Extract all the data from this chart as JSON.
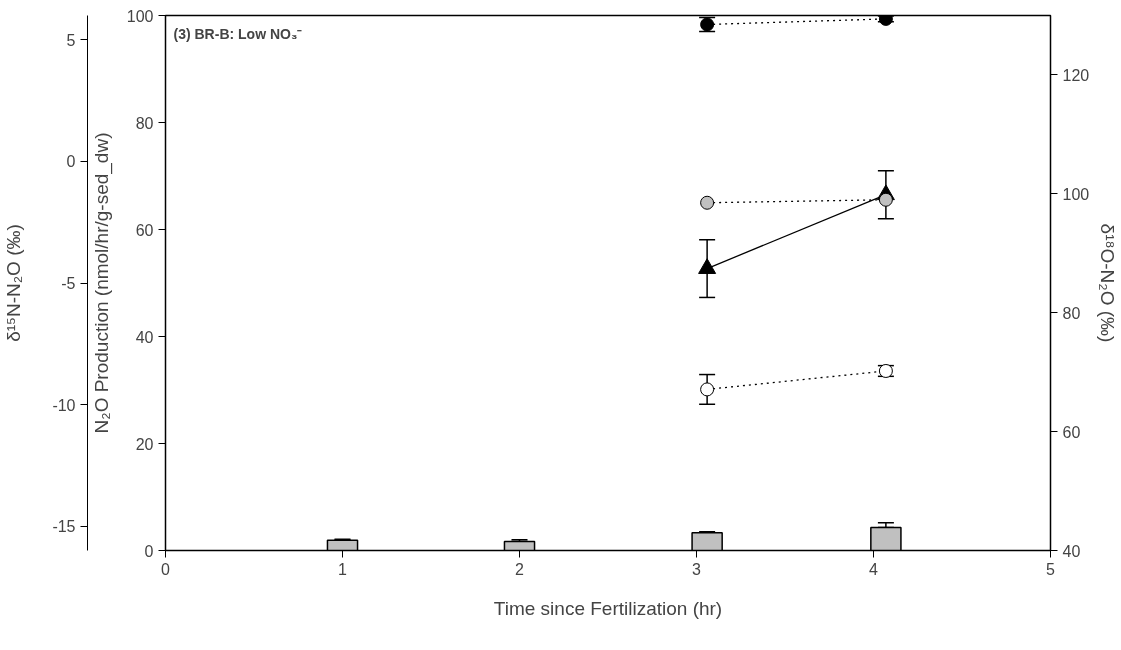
{
  "chart_data": {
    "type": "line",
    "annotations": [
      "(3) BR-B: Low NO₃⁻"
    ],
    "xlabel": "Time since Fertilization (hr)",
    "ylabel": "N₂O Production (nmol/hr/g-sed_dw)",
    "y2label": "δ¹⁸O-N₂O (‰)",
    "y3label": "δ¹⁵N-N₂O (‰)",
    "xlim": [
      0,
      5
    ],
    "xticks": [
      0,
      1,
      2,
      3,
      4,
      5
    ],
    "ylim": [
      0,
      100
    ],
    "yticks": [
      0,
      20,
      40,
      60,
      80,
      100
    ],
    "y2lim": [
      40,
      130
    ],
    "y2ticks": [
      40,
      60,
      80,
      100,
      120
    ],
    "y3lim": [
      -16,
      6
    ],
    "y3ticks": [
      -15,
      -10,
      -5,
      0,
      5
    ],
    "series": [
      {
        "type": "bar",
        "color": "#c0c0c0",
        "x": [
          1,
          2,
          3.06,
          4.07
        ],
        "values": [
          1.9,
          1.7,
          3.3,
          4.3
        ],
        "errors": [
          [
            1.9,
            2.1
          ],
          [
            1.7,
            2.0
          ],
          [
            3.3,
            3.5
          ],
          [
            4.3,
            5.2
          ]
        ]
      },
      {
        "color": "#000000",
        "marker": "triangle",
        "line_style": "solid",
        "x": [
          3.06,
          4.07
        ],
        "values": [
          52.7,
          66.5
        ],
        "errors": [
          5.4,
          4.5
        ]
      },
      {
        "color": "#000000",
        "marker": "circle",
        "line_style": "dotted",
        "axis": "y3",
        "x": [
          3.06,
          4.07
        ],
        "values": [
          5.63,
          5.86
        ],
        "errors": [
          0.29,
          0.12
        ]
      },
      {
        "color": "#c0c0c0",
        "marker": "circle",
        "line_style": "dotted",
        "axis": "y2",
        "x": [
          3.06,
          4.07
        ],
        "values": [
          98.5,
          99.0
        ],
        "errors": [
          null,
          null
        ]
      },
      {
        "color": "#ffffff",
        "marker": "circle",
        "line_style": "dotted",
        "axis": "y2",
        "x": [
          3.06,
          4.07
        ],
        "values": [
          67.1,
          70.2
        ],
        "errors": [
          2.5,
          0.9
        ]
      }
    ]
  }
}
